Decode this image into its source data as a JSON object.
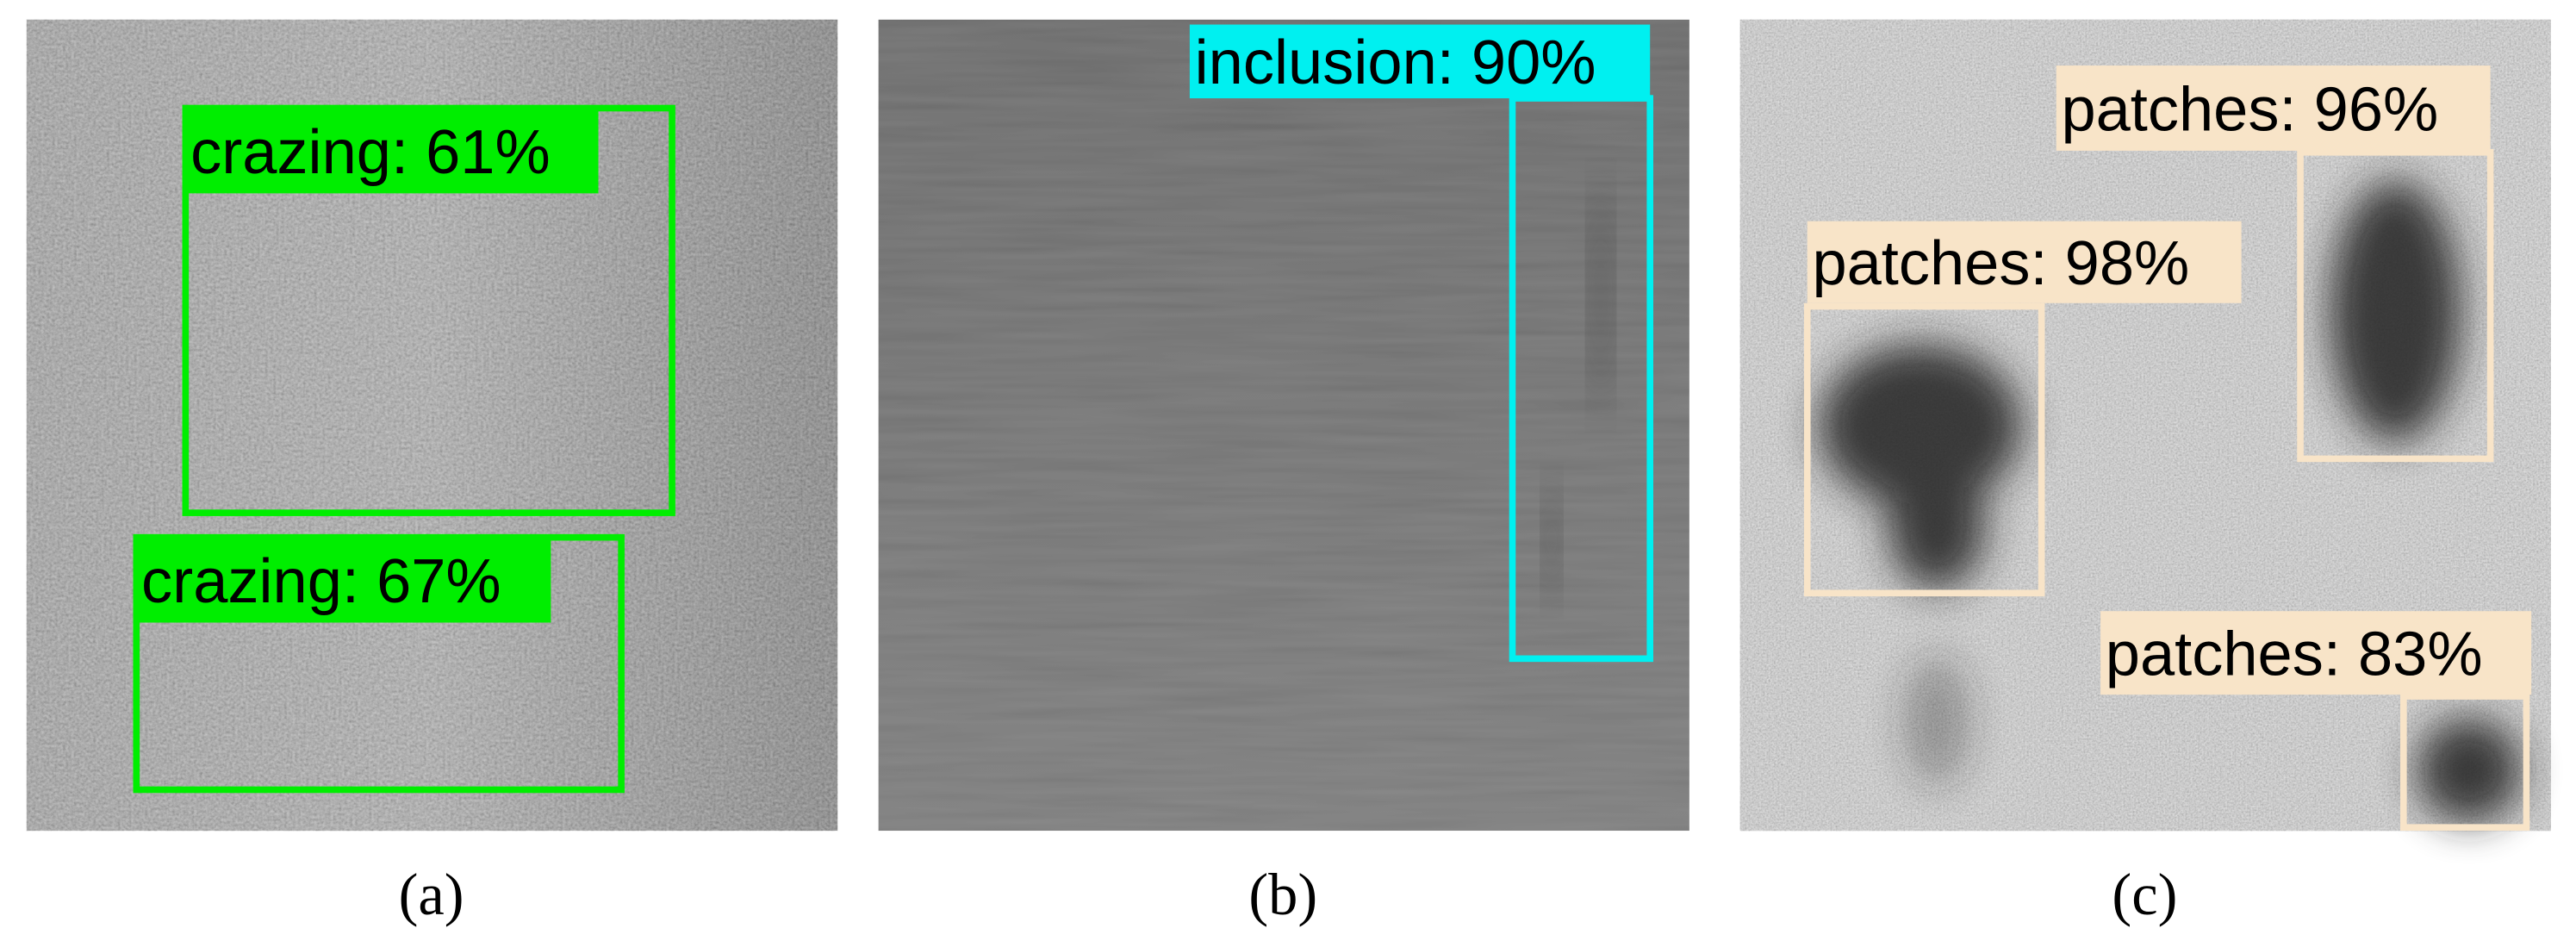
{
  "panels": [
    {
      "caption": "(a)",
      "detections": [
        {
          "label": "crazing: 61%"
        },
        {
          "label": "crazing: 67%"
        }
      ]
    },
    {
      "caption": "(b)",
      "detections": [
        {
          "label": "inclusion: 90%"
        }
      ]
    },
    {
      "caption": "(c)",
      "detections": [
        {
          "label": "patches: 98%"
        },
        {
          "label": "patches: 96%"
        },
        {
          "label": "patches: 83%"
        }
      ]
    }
  ]
}
